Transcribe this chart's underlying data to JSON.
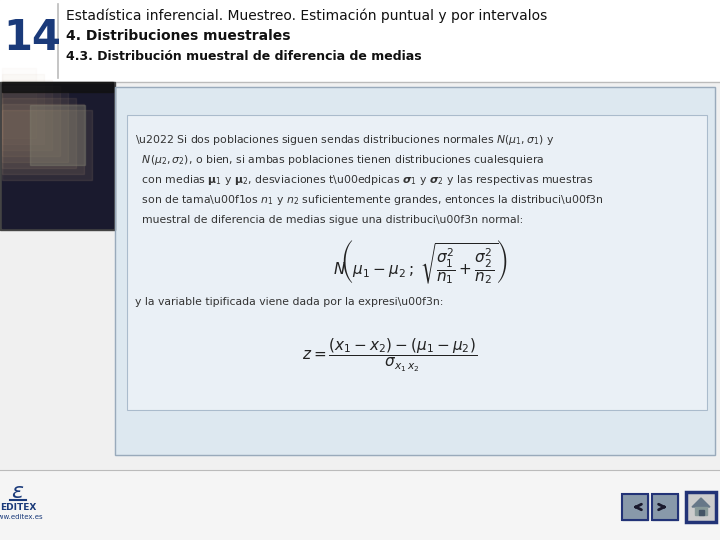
{
  "bg_color": "#f0f0f0",
  "header_bg": "#ffffff",
  "page_number": "14",
  "page_num_color": "#1a3a7a",
  "title_line1": "Estadística inferencial. Muestreo. Estimación puntual y por intervalos",
  "title_line2": "4. Distribuciones muestrales",
  "title_line3": "4.3. Distribución muestral de diferencia de medias",
  "content_box_bg": "#dde8f0",
  "content_box_inner": "#eaf0f6",
  "header_sep_color": "#bbbbbb",
  "content_border_color": "#99aabb",
  "bullet_lines": [
    "\\u2022 Si dos poblaciones siguen sendas distribuciones normales $N(\\mu_1, \\sigma_1)$ y",
    "  $N(\\mu_2, \\sigma_2)$, o bien, si ambas poblaciones tienen distribuciones cualesquiera",
    "  con medias $\\mathbf{\\mu}_1$ y $\\mathbf{\\mu}_2$, desviaciones t\\u00edpicas $\\boldsymbol{\\sigma}_1$ y $\\boldsymbol{\\sigma}_2$ y las respectivas muestras",
    "  son de tama\\u00f1os $n_1$ y $n_2$ suficientemente grandes, entonces la distribuci\\u00f3n",
    "  muestral de diferencia de medias sigue una distribuci\\u00f3n normal:"
  ],
  "formula1": "$N\\!\\left(\\mu_1 - \\mu_2\\,;\\; \\sqrt{\\dfrac{\\sigma_1^2}{n_1} + \\dfrac{\\sigma_2^2}{n_2}}\\right)$",
  "formula2_label": "y la variable tipificada viene dada por la expresi\\u00f3n:",
  "formula2": "$z = \\dfrac{(x_1 - x_2) - (\\mu_1 - \\mu_2)}{\\sigma_{x_1\\, x_2}}$",
  "footer_blue": "#1a3a7a",
  "footer_text": "www.editex.es",
  "nav_btn_color": "#3355aa",
  "nav_btn_border": "#223377"
}
